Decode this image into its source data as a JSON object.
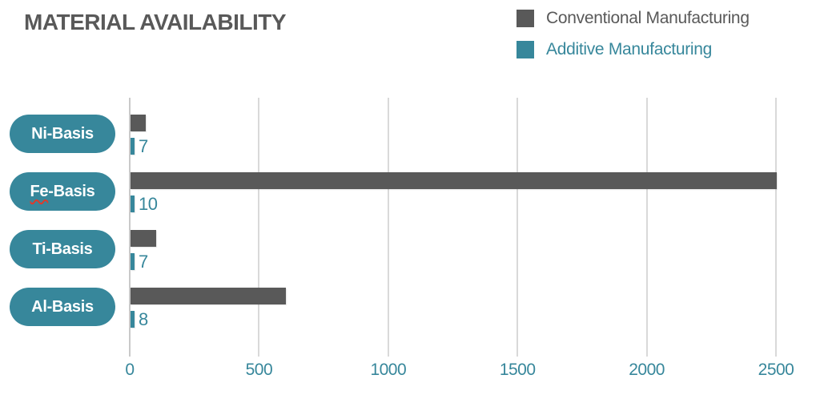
{
  "title": "MATERIAL AVAILABILITY",
  "legend": {
    "items": [
      {
        "label": "Conventional Manufacturing",
        "color": "#595959"
      },
      {
        "label": "Additive Manufacturing",
        "color": "#37879B"
      }
    ]
  },
  "chart_data": {
    "type": "bar",
    "orientation": "horizontal",
    "title": "MATERIAL AVAILABILITY",
    "categories": [
      "Ni-Basis",
      "Fe-Basis",
      "Ti-Basis",
      "Al-Basis"
    ],
    "series": [
      {
        "name": "Conventional Manufacturing",
        "color": "#595959",
        "values": [
          60,
          2500,
          100,
          600
        ],
        "show_value_labels": false
      },
      {
        "name": "Additive Manufacturing",
        "color": "#37879B",
        "values": [
          7,
          10,
          7,
          8
        ],
        "show_value_labels": true
      }
    ],
    "value_labels_additive": [
      "7",
      "10",
      "7",
      "8"
    ],
    "xlim": [
      0,
      2500
    ],
    "xticks": [
      0,
      500,
      1000,
      1500,
      2000,
      2500
    ],
    "grid": "vertical-gridlines-on",
    "legend_position": "top-right",
    "misspelled_category": "Fe-Basis"
  },
  "colors": {
    "accent_teal": "#37879B",
    "bar_gray": "#595959",
    "gridline": "#d9d9d9",
    "axis_line": "#c9c9c9",
    "title_gray": "#595959",
    "pill_text": "#ffffff",
    "spellcheck_red": "#dd3b2c"
  }
}
